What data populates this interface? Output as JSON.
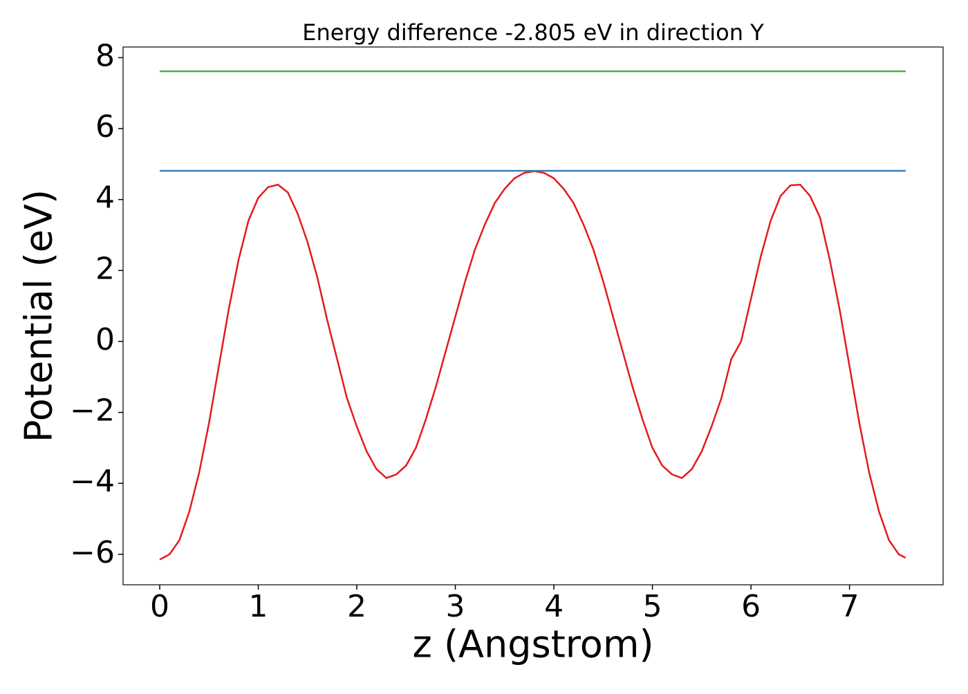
{
  "chart_data": {
    "type": "line",
    "title": "Energy difference -2.805 eV in direction Y",
    "xlabel": "z (Angstrom)",
    "ylabel": "Potential (eV)",
    "xlim": [
      -0.372,
      7.95
    ],
    "ylim": [
      -6.86,
      8.3
    ],
    "xticks": [
      0,
      1,
      2,
      3,
      4,
      5,
      6,
      7
    ],
    "yticks": [
      {
        "value": -6,
        "label": "−6"
      },
      {
        "value": -4,
        "label": "−4"
      },
      {
        "value": -2,
        "label": "−2"
      },
      0,
      2,
      4,
      6,
      8
    ],
    "series": [
      {
        "color": "#e41a1c",
        "x": [
          0,
          0.1,
          0.2,
          0.3,
          0.4,
          0.5,
          0.6,
          0.7,
          0.8,
          0.9,
          1.0,
          1.1,
          1.2,
          1.3,
          1.4,
          1.5,
          1.6,
          1.7,
          1.8,
          1.9,
          2.0,
          2.1,
          2.2,
          2.3,
          2.4,
          2.5,
          2.6,
          2.7,
          2.8,
          2.9,
          3.0,
          3.1,
          3.2,
          3.3,
          3.4,
          3.5,
          3.6,
          3.7,
          3.8,
          3.9,
          4.0,
          4.1,
          4.2,
          4.3,
          4.4,
          4.5,
          4.6,
          4.7,
          4.8,
          4.9,
          5.0,
          5.1,
          5.2,
          5.3,
          5.4,
          5.5,
          5.6,
          5.7,
          5.8,
          5.9,
          6.0,
          6.1,
          6.2,
          6.3,
          6.4,
          6.5,
          6.6,
          6.7,
          6.8,
          6.9,
          7.0,
          7.1,
          7.2,
          7.3,
          7.4,
          7.5,
          7.57
        ],
        "values": [
          -6.15,
          -6.0,
          -5.6,
          -4.8,
          -3.7,
          -2.3,
          -0.7,
          0.9,
          2.3,
          3.4,
          4.05,
          4.35,
          4.42,
          4.2,
          3.6,
          2.8,
          1.8,
          0.6,
          -0.5,
          -1.6,
          -2.4,
          -3.1,
          -3.6,
          -3.85,
          -3.75,
          -3.5,
          -3.0,
          -2.2,
          -1.3,
          -0.3,
          0.7,
          1.7,
          2.6,
          3.3,
          3.9,
          4.3,
          4.6,
          4.75,
          4.8,
          4.75,
          4.6,
          4.3,
          3.9,
          3.3,
          2.6,
          1.7,
          0.7,
          -0.3,
          -1.3,
          -2.2,
          -3.0,
          -3.5,
          -3.75,
          -3.85,
          -3.6,
          -3.1,
          -2.4,
          -1.6,
          -0.5,
          0.0,
          1.2,
          2.4,
          3.4,
          4.1,
          4.4,
          4.42,
          4.1,
          3.5,
          2.3,
          0.9,
          -0.7,
          -2.3,
          -3.7,
          -4.8,
          -5.6,
          -6.0,
          -6.1
        ]
      },
      {
        "color": "#377eb8",
        "x": [
          0,
          7.57
        ],
        "values": [
          4.81,
          4.81
        ]
      },
      {
        "color": "#4daf4a",
        "x": [
          0,
          7.57
        ],
        "values": [
          7.615,
          7.615
        ]
      }
    ]
  }
}
